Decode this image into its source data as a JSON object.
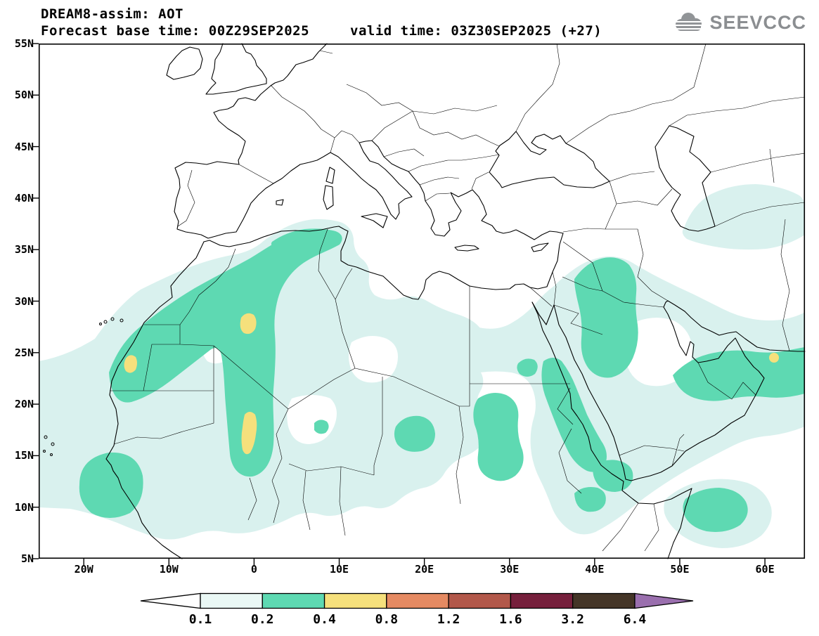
{
  "header": {
    "title": "DREAM8-assim: AOT",
    "base_time": "Forecast base time: 00Z29SEP2025",
    "valid_time": "valid time: 03Z30SEP2025 (+27)"
  },
  "logo": {
    "text": "SEEVCCC"
  },
  "map": {
    "variable": "AOT",
    "lat_ticks": [
      {
        "label": "55N",
        "lat": 55
      },
      {
        "label": "50N",
        "lat": 50
      },
      {
        "label": "45N",
        "lat": 45
      },
      {
        "label": "40N",
        "lat": 40
      },
      {
        "label": "35N",
        "lat": 35
      },
      {
        "label": "30N",
        "lat": 30
      },
      {
        "label": "25N",
        "lat": 25
      },
      {
        "label": "20N",
        "lat": 20
      },
      {
        "label": "15N",
        "lat": 15
      },
      {
        "label": "10N",
        "lat": 10
      },
      {
        "label": "5N",
        "lat": 5
      }
    ],
    "lon_ticks": [
      {
        "label": "20W",
        "lon": -20
      },
      {
        "label": "10W",
        "lon": -10
      },
      {
        "label": "0",
        "lon": 0
      },
      {
        "label": "10E",
        "lon": 10
      },
      {
        "label": "20E",
        "lon": 20
      },
      {
        "label": "30E",
        "lon": 30
      },
      {
        "label": "40E",
        "lon": 40
      },
      {
        "label": "50E",
        "lon": 50
      },
      {
        "label": "60E",
        "lon": 60
      }
    ]
  },
  "colorbar": {
    "labels": [
      "0.1",
      "0.2",
      "0.4",
      "0.8",
      "1.2",
      "1.6",
      "3.2",
      "6.4"
    ],
    "segment_colors": [
      "#eaf8f5",
      "#5ed9b2",
      "#f5e07c",
      "#e58a62",
      "#b2584a",
      "#76203c",
      "#443527"
    ],
    "left_arrow_color": "#ffffff",
    "right_arrow_color": "#9a6fae",
    "outline_color": "#000000"
  },
  "palette": {
    "light": "#d9f1ee",
    "teal": "#5ed9b2",
    "yellow": "#f5e07c",
    "coast": "#000000",
    "logo_gray": "#919497"
  }
}
